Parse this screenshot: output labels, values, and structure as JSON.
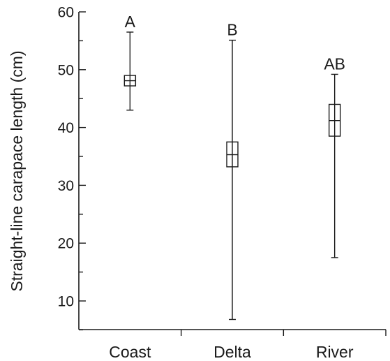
{
  "chart_data": {
    "type": "box",
    "ylabel": "Straight-line carapace length (cm)",
    "xlabel": "",
    "ylim": [
      5,
      60
    ],
    "yticks": [
      10,
      20,
      30,
      40,
      50,
      60
    ],
    "y_minor_step": 5,
    "categories": [
      "Coast",
      "Delta",
      "River"
    ],
    "boxes": [
      {
        "category": "Coast",
        "min": 43.0,
        "q1": 47.2,
        "median": 48.1,
        "q3": 49.0,
        "max": 56.5,
        "group_letter": "A"
      },
      {
        "category": "Delta",
        "min": 6.8,
        "q1": 33.2,
        "median": 35.3,
        "q3": 37.5,
        "max": 55.1,
        "group_letter": "B"
      },
      {
        "category": "River",
        "min": 17.5,
        "q1": 38.5,
        "median": 41.2,
        "q3": 44.0,
        "max": 49.2,
        "group_letter": "AB"
      }
    ],
    "grid": false,
    "legend": "none"
  }
}
